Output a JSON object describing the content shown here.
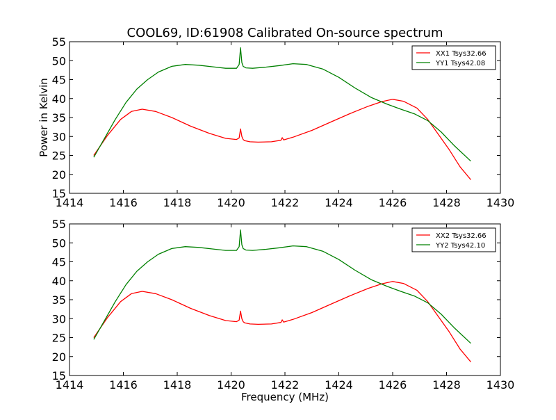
{
  "figure_title": "COOL69, ID:61908 Calibrated On-source spectrum",
  "chart_data": [
    {
      "type": "line",
      "title": "COOL69, ID:61908 Calibrated On-source spectrum",
      "xlabel": "",
      "ylabel": "Power in Kelvin",
      "xlim": [
        1414,
        1430
      ],
      "ylim": [
        15,
        55
      ],
      "xticks": [
        1414,
        1416,
        1418,
        1420,
        1422,
        1424,
        1426,
        1428,
        1430
      ],
      "yticks": [
        15,
        20,
        25,
        30,
        35,
        40,
        45,
        50,
        55
      ],
      "grid": false,
      "legend_position": "top-right",
      "series": [
        {
          "name": "XX1 Tsys32.66",
          "color": "#ff0000",
          "x": [
            1414.9,
            1415.4,
            1415.9,
            1416.3,
            1416.7,
            1417.2,
            1417.8,
            1418.5,
            1419.2,
            1419.8,
            1420.2,
            1420.3,
            1420.35,
            1420.4,
            1420.45,
            1420.5,
            1420.7,
            1421.0,
            1421.5,
            1421.85,
            1421.9,
            1421.95,
            1422.3,
            1423.0,
            1423.7,
            1424.4,
            1425.1,
            1425.6,
            1426.0,
            1426.4,
            1426.9,
            1427.3,
            1427.7,
            1428.1,
            1428.5,
            1428.9
          ],
          "y": [
            25.0,
            30.2,
            34.5,
            36.6,
            37.2,
            36.6,
            35.0,
            32.7,
            30.8,
            29.5,
            29.2,
            29.6,
            32.0,
            30.0,
            29.2,
            28.9,
            28.6,
            28.5,
            28.6,
            29.0,
            29.7,
            29.1,
            29.8,
            31.6,
            33.8,
            36.0,
            38.0,
            39.2,
            39.8,
            39.3,
            37.5,
            34.5,
            30.5,
            26.5,
            22.0,
            18.6
          ]
        },
        {
          "name": "YY1 Tsys42.08",
          "color": "#008000",
          "x": [
            1414.9,
            1415.3,
            1415.7,
            1416.1,
            1416.5,
            1416.9,
            1417.3,
            1417.8,
            1418.3,
            1418.8,
            1419.3,
            1419.8,
            1420.2,
            1420.3,
            1420.35,
            1420.4,
            1420.45,
            1420.55,
            1420.8,
            1421.3,
            1421.8,
            1422.3,
            1422.8,
            1423.4,
            1424.0,
            1424.6,
            1425.2,
            1425.8,
            1426.3,
            1426.8,
            1427.3,
            1427.8,
            1428.3,
            1428.9
          ],
          "y": [
            24.5,
            29.5,
            34.5,
            39.0,
            42.5,
            45.0,
            47.0,
            48.5,
            49.0,
            48.8,
            48.4,
            48.0,
            48.0,
            49.0,
            53.4,
            49.5,
            48.5,
            48.1,
            48.0,
            48.3,
            48.7,
            49.2,
            49.0,
            47.8,
            45.6,
            42.8,
            40.3,
            38.5,
            37.2,
            36.0,
            34.2,
            31.2,
            27.5,
            23.5
          ]
        }
      ]
    },
    {
      "type": "line",
      "title": "",
      "xlabel": "Frequency (MHz)",
      "ylabel": "",
      "xlim": [
        1414,
        1430
      ],
      "ylim": [
        15,
        55
      ],
      "xticks": [
        1414,
        1416,
        1418,
        1420,
        1422,
        1424,
        1426,
        1428,
        1430
      ],
      "yticks": [
        15,
        20,
        25,
        30,
        35,
        40,
        45,
        50,
        55
      ],
      "grid": false,
      "legend_position": "top-right",
      "series": [
        {
          "name": "XX2 Tsys32.66",
          "color": "#ff0000",
          "x": [
            1414.9,
            1415.4,
            1415.9,
            1416.3,
            1416.7,
            1417.2,
            1417.8,
            1418.5,
            1419.2,
            1419.8,
            1420.2,
            1420.3,
            1420.35,
            1420.4,
            1420.45,
            1420.5,
            1420.7,
            1421.0,
            1421.5,
            1421.85,
            1421.9,
            1421.95,
            1422.3,
            1423.0,
            1423.7,
            1424.4,
            1425.1,
            1425.6,
            1426.0,
            1426.4,
            1426.9,
            1427.3,
            1427.7,
            1428.1,
            1428.5,
            1428.9
          ],
          "y": [
            25.0,
            30.2,
            34.5,
            36.6,
            37.2,
            36.6,
            35.0,
            32.7,
            30.8,
            29.5,
            29.2,
            29.6,
            32.0,
            30.0,
            29.2,
            28.9,
            28.6,
            28.5,
            28.6,
            29.0,
            29.7,
            29.1,
            29.8,
            31.6,
            33.8,
            36.0,
            38.0,
            39.2,
            39.8,
            39.3,
            37.5,
            34.5,
            30.5,
            26.5,
            22.0,
            18.6
          ]
        },
        {
          "name": "YY2 Tsys42.10",
          "color": "#008000",
          "x": [
            1414.9,
            1415.3,
            1415.7,
            1416.1,
            1416.5,
            1416.9,
            1417.3,
            1417.8,
            1418.3,
            1418.8,
            1419.3,
            1419.8,
            1420.2,
            1420.3,
            1420.35,
            1420.4,
            1420.45,
            1420.55,
            1420.8,
            1421.3,
            1421.8,
            1422.3,
            1422.8,
            1423.4,
            1424.0,
            1424.6,
            1425.2,
            1425.8,
            1426.3,
            1426.8,
            1427.3,
            1427.8,
            1428.3,
            1428.9
          ],
          "y": [
            24.5,
            29.5,
            34.5,
            39.0,
            42.5,
            45.0,
            47.0,
            48.5,
            49.0,
            48.8,
            48.4,
            48.0,
            48.0,
            49.0,
            53.4,
            49.5,
            48.5,
            48.1,
            48.0,
            48.3,
            48.7,
            49.2,
            49.0,
            47.8,
            45.6,
            42.8,
            40.3,
            38.5,
            37.2,
            36.0,
            34.2,
            31.2,
            27.5,
            23.5
          ]
        }
      ]
    }
  ]
}
